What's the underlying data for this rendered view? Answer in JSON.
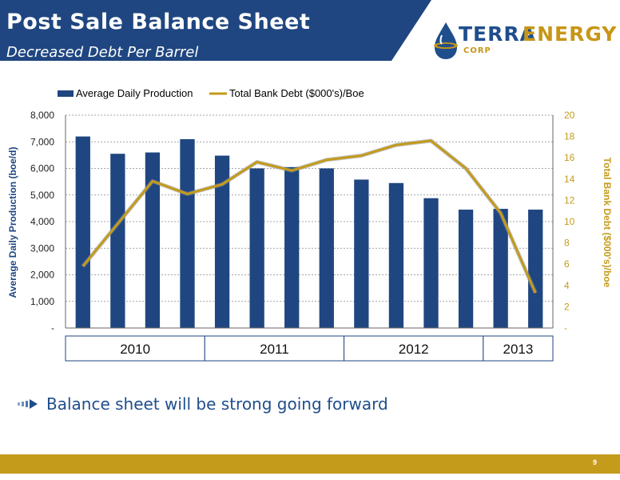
{
  "header": {
    "title": "Post Sale Balance Sheet",
    "subtitle": "Decreased Debt Per Barrel",
    "banner_color": "#1f4680"
  },
  "logo": {
    "text_a": "TERRA",
    "text_b": "ENERGY",
    "corp": "CORP",
    "colors": {
      "blue": "#1f4e8c",
      "gold": "#c89617"
    }
  },
  "chart_data": {
    "type": "bar",
    "legend": [
      "Average Daily Production",
      "Total Bank Debt ($000's)/Boe"
    ],
    "legend_position": "top",
    "ylabel_left": "Average Daily Production (boe/d)",
    "ylabel_right": "Total Bank Debt ($000's)/boe",
    "ylim_left": [
      0,
      8000
    ],
    "ylim_right": [
      0,
      20
    ],
    "yticks_left": [
      "-",
      "1,000",
      "2,000",
      "3,000",
      "4,000",
      "5,000",
      "6,000",
      "7,000",
      "8,000"
    ],
    "yticks_right": [
      "-",
      "2",
      "4",
      "6",
      "8",
      "10",
      "12",
      "14",
      "16",
      "18",
      "20"
    ],
    "grid": true,
    "series": [
      {
        "name": "Average Daily Production",
        "type": "bar",
        "axis": "left",
        "color": "#1f4680",
        "values": [
          7200,
          6550,
          6600,
          7100,
          6480,
          6000,
          6050,
          6000,
          5580,
          5450,
          4880,
          4450,
          4480,
          4450
        ]
      },
      {
        "name": "Total Bank Debt ($000's)/Boe",
        "type": "line",
        "axis": "right",
        "color": "#c49b1a",
        "values": [
          5.8,
          9.8,
          13.8,
          12.6,
          13.5,
          15.6,
          14.8,
          15.8,
          16.2,
          17.2,
          17.6,
          15.0,
          10.8,
          3.3
        ]
      }
    ],
    "year_groups": [
      {
        "label": "2010",
        "count": 4
      },
      {
        "label": "2011",
        "count": 4
      },
      {
        "label": "2012",
        "count": 4
      },
      {
        "label": "2013",
        "count": 2
      }
    ]
  },
  "bullets": [
    "Balance sheet will be strong going forward"
  ],
  "footer": {
    "page": "9",
    "color": "#c49b1a"
  }
}
